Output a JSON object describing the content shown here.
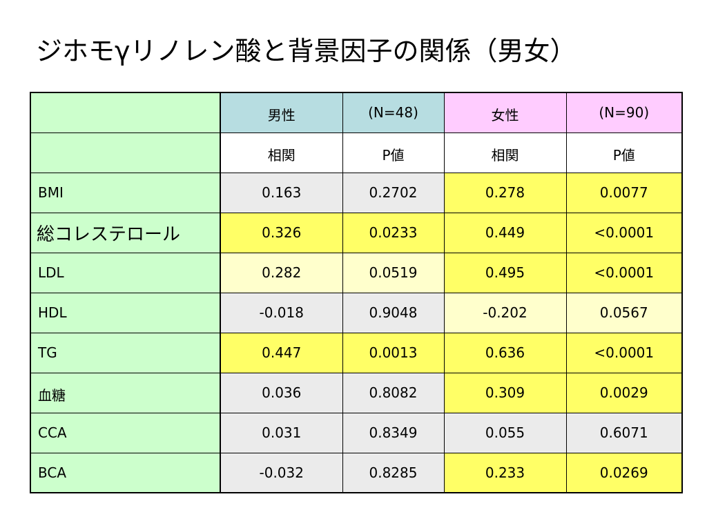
{
  "title": "ジホモγリノレン酸と背景因子の関係（男女）",
  "table": {
    "header_row1": [
      "",
      "男性",
      "(N=48)",
      "女性",
      "(N=90)"
    ],
    "header_row2": [
      "",
      "相関",
      "P値",
      "相関",
      "P値"
    ],
    "rows": [
      {
        "label": "BMI",
        "male_corr": "0.163",
        "male_p": "0.2702",
        "female_corr": "0.278",
        "female_p": "0.0077"
      },
      {
        "label": "総コレステロール",
        "male_corr": "0.326",
        "male_p": "0.0233",
        "female_corr": "0.449",
        "female_p": "<0.0001"
      },
      {
        "label": "LDL",
        "male_corr": "0.282",
        "male_p": "0.0519",
        "female_corr": "0.495",
        "female_p": "<0.0001"
      },
      {
        "label": "HDL",
        "male_corr": "-0.018",
        "male_p": "0.9048",
        "female_corr": "-0.202",
        "female_p": "0.0567"
      },
      {
        "label": "TG",
        "male_corr": "0.447",
        "male_p": "0.0013",
        "female_corr": "0.636",
        "female_p": "<0.0001"
      },
      {
        "label": "血糖",
        "male_corr": "0.036",
        "male_p": "0.8082",
        "female_corr": "0.309",
        "female_p": "0.0029"
      },
      {
        "label": "CCA",
        "male_corr": "0.031",
        "male_p": "0.8349",
        "female_corr": "0.055",
        "female_p": "0.6071"
      },
      {
        "label": "BCA",
        "male_corr": "-0.032",
        "male_p": "0.8285",
        "female_corr": "0.233",
        "female_p": "0.0269"
      }
    ]
  },
  "colors": {
    "label_column": "#ccffcc",
    "male_header": "#b7dde1",
    "female_header": "#ffccff",
    "significant": "#ffff66",
    "borderline": "#ffffcc",
    "not_significant": "#ebebeb"
  }
}
